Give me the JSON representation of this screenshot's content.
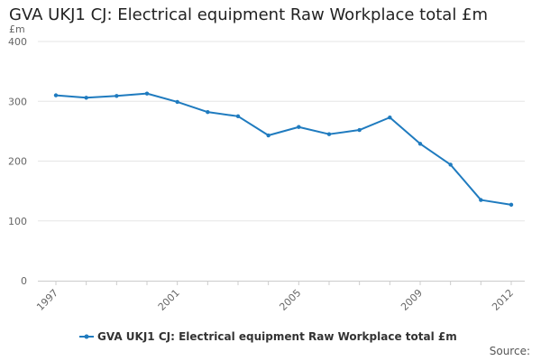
{
  "chart_data": {
    "type": "line",
    "title": "GVA UKJ1 CJ: Electrical equipment Raw Workplace total £m",
    "ylabel": "£m",
    "xlabel": "",
    "ylim": [
      0,
      400
    ],
    "y_ticks": [
      0,
      100,
      200,
      300,
      400
    ],
    "x_tick_labels": [
      "1997",
      "2001",
      "2005",
      "2009",
      "2012"
    ],
    "x": [
      1997,
      1998,
      1999,
      2000,
      2001,
      2002,
      2003,
      2004,
      2005,
      2006,
      2007,
      2008,
      2009,
      2010,
      2011,
      2012
    ],
    "series": [
      {
        "name": "GVA UKJ1 CJ: Electrical equipment Raw Workplace total £m",
        "color": "#1f7bbf",
        "values": [
          310,
          306,
          309,
          313,
          299,
          282,
          275,
          243,
          257,
          245,
          252,
          273,
          229,
          194,
          135,
          127
        ]
      }
    ],
    "grid": true,
    "legend_position": "bottom-center"
  },
  "source_label": "Source:"
}
